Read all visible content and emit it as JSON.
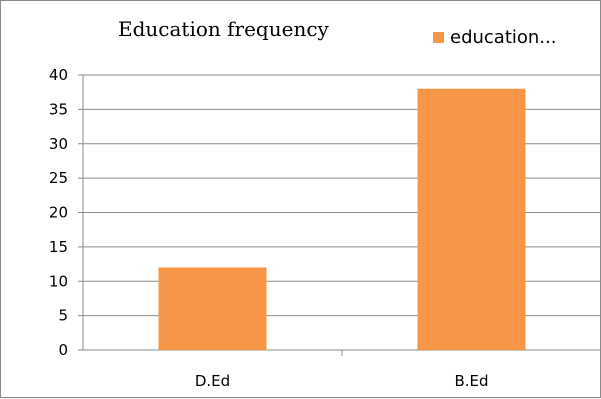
{
  "chart_data": {
    "type": "bar",
    "title": "Education frequency",
    "xlabel": "",
    "ylabel": "",
    "categories": [
      "D.Ed",
      "B.Ed"
    ],
    "series": [
      {
        "name": "education...",
        "values": [
          12,
          38
        ]
      }
    ],
    "ylim": [
      0,
      40
    ],
    "yticks": [
      "0",
      "5",
      "10",
      "15",
      "20",
      "25",
      "30",
      "35",
      "40"
    ],
    "grid": true,
    "legend_position": "top-right",
    "bar_color": "#f79646",
    "grid_color": "#8c8c8c"
  }
}
